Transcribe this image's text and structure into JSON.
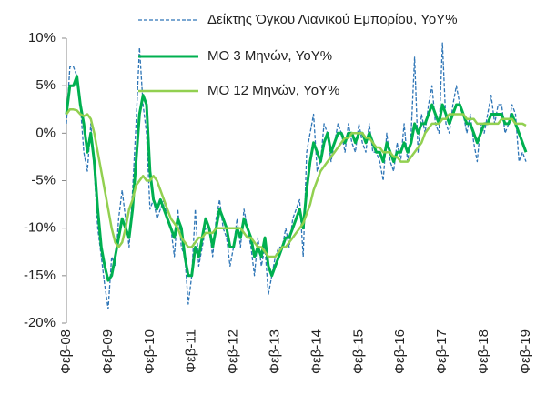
{
  "chart_data": {
    "type": "line",
    "categories": [
      "Φεβ-08",
      null,
      null,
      null,
      null,
      null,
      null,
      null,
      null,
      null,
      null,
      null,
      "Φεβ-09",
      null,
      null,
      null,
      null,
      null,
      null,
      null,
      null,
      null,
      null,
      null,
      "Φεβ-10",
      null,
      null,
      null,
      null,
      null,
      null,
      null,
      null,
      null,
      null,
      null,
      "Φεβ-11",
      null,
      null,
      null,
      null,
      null,
      null,
      null,
      null,
      null,
      null,
      null,
      "Φεβ-12",
      null,
      null,
      null,
      null,
      null,
      null,
      null,
      null,
      null,
      null,
      null,
      "Φεβ-13",
      null,
      null,
      null,
      null,
      null,
      null,
      null,
      null,
      null,
      null,
      null,
      "Φεβ-14",
      null,
      null,
      null,
      null,
      null,
      null,
      null,
      null,
      null,
      null,
      null,
      "Φεβ-15",
      null,
      null,
      null,
      null,
      null,
      null,
      null,
      null,
      null,
      null,
      null,
      "Φεβ-16",
      null,
      null,
      null,
      null,
      null,
      null,
      null,
      null,
      null,
      null,
      null,
      "Φεβ-17",
      null,
      null,
      null,
      null,
      null,
      null,
      null,
      null,
      null,
      null,
      null,
      "Φεβ-18",
      null,
      null,
      null,
      null,
      null,
      null,
      null,
      null,
      null,
      null,
      null,
      "Φεβ-19"
    ],
    "series": [
      {
        "name": "Δείκτης Όγκου Λιανικού Εμπορίου, YoY%",
        "color": "#2e75b6",
        "dash": true,
        "width": 1.3,
        "values": [
          1,
          7,
          7,
          6,
          3,
          -2,
          -4,
          1,
          -4,
          -10,
          -13,
          -16,
          -18.5,
          -13,
          -14,
          -9,
          -6,
          -9,
          -12,
          -6,
          1,
          9,
          3,
          0,
          -8,
          -7,
          -9,
          -8,
          -7,
          -9,
          -10,
          -13,
          -8,
          -12,
          -13,
          -18,
          -15,
          -8,
          -14,
          -12,
          -10,
          -10,
          -13,
          -9,
          -7,
          -10,
          -11,
          -14,
          -12,
          -9,
          -12,
          -8,
          -10,
          -12,
          -15,
          -11,
          -14,
          -12,
          -17,
          -15,
          -13,
          -12,
          -12,
          -10,
          -12,
          -9,
          -8,
          -7,
          -13,
          -2,
          0,
          2,
          -4,
          -3,
          1,
          0,
          -3,
          -1,
          1,
          0,
          -2,
          1,
          -1,
          -2,
          1,
          -1,
          -2,
          1,
          -2,
          -2,
          -3,
          -5,
          0,
          -3,
          -4,
          -1,
          -3,
          1,
          -3,
          0,
          8,
          -2,
          2,
          0,
          3,
          5,
          1,
          0,
          9.5,
          1,
          0,
          3,
          5,
          3,
          2,
          0,
          2,
          -1,
          -3,
          1,
          0,
          2,
          4,
          1,
          3,
          3,
          0,
          1,
          3,
          2,
          -3,
          -2,
          -3
        ]
      },
      {
        "name": "ΜΟ 3 Μηνών, YoY%",
        "color": "#00b050",
        "dash": false,
        "width": 3,
        "values": [
          2,
          5,
          5,
          6,
          3,
          1,
          -2,
          0,
          -3,
          -8,
          -12,
          -14,
          -15.5,
          -15,
          -13,
          -11,
          -9,
          -10,
          -11,
          -8,
          -3,
          2,
          4,
          3,
          -4,
          -7,
          -8,
          -7,
          -8,
          -9,
          -10,
          -11,
          -9,
          -10,
          -13,
          -15,
          -15,
          -12,
          -13,
          -11,
          -9,
          -10,
          -12,
          -10,
          -8,
          -9,
          -10,
          -12,
          -12,
          -10,
          -11,
          -9,
          -10,
          -11,
          -13,
          -12,
          -13,
          -11,
          -14,
          -15,
          -14,
          -13,
          -12,
          -11,
          -11,
          -10,
          -9,
          -8,
          -10,
          -6,
          -3,
          -1,
          -2,
          -3,
          -1,
          0,
          -2,
          -1,
          0,
          0,
          -1,
          0,
          0,
          -1,
          0,
          0,
          -1,
          0,
          -1,
          -2,
          -2,
          -3,
          -1,
          -2,
          -3,
          -2,
          -2,
          -1,
          -2,
          -1,
          1,
          0,
          1,
          1,
          2,
          3,
          2,
          1,
          3,
          2,
          1,
          2,
          3,
          3,
          2,
          1,
          1,
          0,
          -1,
          0,
          1,
          1,
          2,
          2,
          2,
          2,
          1,
          1,
          2,
          1,
          0,
          -1,
          -2
        ]
      },
      {
        "name": "ΜΟ 12 Μηνών, YoY%",
        "color": "#92d050",
        "dash": false,
        "width": 2.5,
        "values": [
          2,
          2.5,
          2.5,
          2.4,
          2,
          1.8,
          2,
          1.5,
          0,
          -2,
          -4,
          -6,
          -8,
          -10,
          -11.5,
          -12,
          -11.5,
          -10,
          -8,
          -7,
          -5.5,
          -5,
          -4.5,
          -5,
          -5,
          -4.5,
          -5,
          -6,
          -7,
          -8,
          -9,
          -9.5,
          -10,
          -11,
          -11.5,
          -12,
          -12,
          -11.5,
          -11,
          -11,
          -10.5,
          -10.5,
          -10.5,
          -10,
          -10,
          -10,
          -10,
          -10,
          -10,
          -10,
          -10,
          -10.5,
          -11,
          -11,
          -11.5,
          -12,
          -12,
          -12.5,
          -13,
          -13,
          -13,
          -12.5,
          -12,
          -12,
          -11.5,
          -11,
          -10.5,
          -10,
          -9.5,
          -8.5,
          -7.5,
          -6,
          -5,
          -4,
          -3.5,
          -3,
          -2.5,
          -2,
          -1.5,
          -1,
          -0.5,
          -0.5,
          0,
          0,
          0,
          0,
          -0.5,
          -0.5,
          -1,
          -1.5,
          -1.5,
          -2,
          -2,
          -2,
          -2.5,
          -2.5,
          -3,
          -3,
          -3,
          -2.5,
          -2,
          -1.5,
          -1,
          0,
          0.5,
          1,
          1,
          1,
          1.5,
          1.5,
          2,
          2,
          2,
          2,
          2,
          1.5,
          1.5,
          1.5,
          1,
          1,
          1,
          1,
          1,
          1,
          1,
          1.5,
          1.5,
          1.5,
          1.5,
          1,
          1,
          1,
          0.8
        ]
      }
    ],
    "ylim": [
      -20,
      10
    ],
    "yticks": [
      {
        "value": -20,
        "label": "-20%"
      },
      {
        "value": -15,
        "label": "-15%"
      },
      {
        "value": -10,
        "label": "-10%"
      },
      {
        "value": -5,
        "label": "-5%"
      },
      {
        "value": 0,
        "label": "0%"
      },
      {
        "value": 5,
        "label": "5%"
      },
      {
        "value": 10,
        "label": "10%"
      }
    ]
  }
}
